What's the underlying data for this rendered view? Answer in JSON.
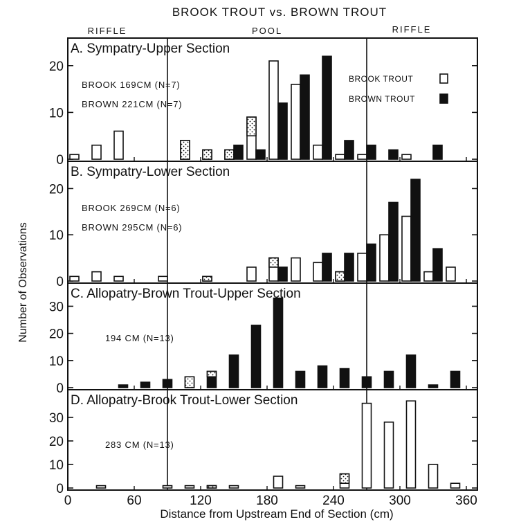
{
  "figure": {
    "title": "BROOK TROUT vs. BROWN TROUT",
    "habitat_labels": [
      "RIFFLE",
      "POOL",
      "RIFFLE"
    ],
    "xlabel": "Distance from Upstream End of Section (cm)",
    "ylabel": "Number of Observations",
    "legend": {
      "brook": "BROOK TROUT",
      "brown": "BROWN TROUT"
    },
    "colors": {
      "brook": "#ffffff",
      "brown": "#111111",
      "stipple": "#111111"
    }
  },
  "chart_data": [
    {
      "type": "bar",
      "title": "A. Sympatry-Upper Section",
      "annotations": [
        "BROOK 169CM (N=7)",
        "BROWN 221CM (N=7)"
      ],
      "x": [
        10,
        30,
        50,
        70,
        90,
        110,
        130,
        150,
        170,
        190,
        210,
        230,
        250,
        270,
        290,
        310,
        330,
        350
      ],
      "xlim": [
        0,
        370
      ],
      "ylim": [
        0,
        25
      ],
      "yticks": [
        0,
        10,
        20
      ],
      "legend_position": "right",
      "series": [
        {
          "name": "BROOK TROUT",
          "values": [
            1,
            3,
            6,
            0,
            0,
            4,
            2,
            2,
            9,
            21,
            16,
            3,
            1,
            1,
            0,
            1,
            0,
            0
          ]
        },
        {
          "name": "BROWN TROUT",
          "values": [
            0,
            0,
            0,
            0,
            0,
            0,
            0,
            3,
            2,
            12,
            18,
            22,
            4,
            3,
            2,
            0,
            3,
            0
          ]
        }
      ],
      "stippled_values": [
        0,
        0,
        0,
        0,
        0,
        4,
        2,
        2,
        4,
        0,
        0,
        0,
        0,
        0,
        0,
        0,
        0,
        0
      ]
    },
    {
      "type": "bar",
      "title": "B. Sympatry-Lower Section",
      "annotations": [
        "BROOK 269CM (N=6)",
        "BROWN 295CM (N=6)"
      ],
      "x": [
        10,
        30,
        50,
        70,
        90,
        110,
        130,
        150,
        170,
        190,
        210,
        230,
        250,
        270,
        290,
        310,
        330,
        350
      ],
      "xlim": [
        0,
        370
      ],
      "ylim": [
        0,
        25
      ],
      "yticks": [
        0,
        10,
        20
      ],
      "series": [
        {
          "name": "BROOK TROUT",
          "values": [
            1,
            2,
            1,
            0,
            1,
            0,
            1,
            0,
            3,
            5,
            5,
            4,
            2,
            6,
            10,
            14,
            2,
            3
          ]
        },
        {
          "name": "BROWN TROUT",
          "values": [
            0,
            0,
            0,
            0,
            0,
            0,
            0,
            0,
            0,
            3,
            0,
            6,
            6,
            8,
            17,
            22,
            7,
            0
          ]
        }
      ],
      "stippled_values": [
        0,
        0,
        0,
        0,
        0,
        0,
        3,
        0,
        0,
        2,
        0,
        0,
        5,
        0,
        0,
        0,
        0,
        0
      ]
    },
    {
      "type": "bar",
      "title": "C. Allopatry-Brown Trout-Upper Section",
      "annotations": [
        "194 CM (N=13)"
      ],
      "x": [
        10,
        30,
        50,
        70,
        90,
        110,
        130,
        150,
        170,
        190,
        210,
        230,
        250,
        270,
        290,
        310,
        330,
        350
      ],
      "xlim": [
        0,
        370
      ],
      "ylim": [
        0,
        37
      ],
      "yticks": [
        0,
        10,
        20,
        30
      ],
      "series": [
        {
          "name": "BROWN TROUT",
          "values": [
            0,
            0,
            1,
            2,
            3,
            4,
            6,
            12,
            23,
            33,
            6,
            8,
            7,
            4,
            6,
            12,
            1,
            6
          ]
        }
      ],
      "stippled_values": [
        0,
        0,
        0,
        0,
        0,
        4,
        2,
        0,
        0,
        0,
        0,
        0,
        0,
        0,
        0,
        0,
        0,
        0
      ]
    },
    {
      "type": "bar",
      "title": "D. Allopatry-Brook Trout-Lower Section",
      "annotations": [
        "283 CM (N=13)"
      ],
      "x": [
        10,
        30,
        50,
        70,
        90,
        110,
        130,
        150,
        170,
        190,
        210,
        230,
        250,
        270,
        290,
        310,
        330,
        350
      ],
      "xlim": [
        0,
        370
      ],
      "ylim": [
        0,
        40
      ],
      "yticks": [
        0,
        10,
        20,
        30
      ],
      "xticks": [
        0,
        60,
        120,
        180,
        240,
        300,
        360
      ],
      "series": [
        {
          "name": "BROOK TROUT",
          "values": [
            0,
            1,
            0,
            0,
            1,
            1,
            1,
            1,
            0,
            5,
            1,
            0,
            6,
            36,
            28,
            37,
            10,
            2
          ]
        }
      ],
      "stippled_values": [
        0,
        0,
        0,
        0,
        0,
        0,
        6,
        0,
        0,
        0,
        0,
        0,
        4,
        0,
        0,
        0,
        0,
        0
      ]
    }
  ]
}
